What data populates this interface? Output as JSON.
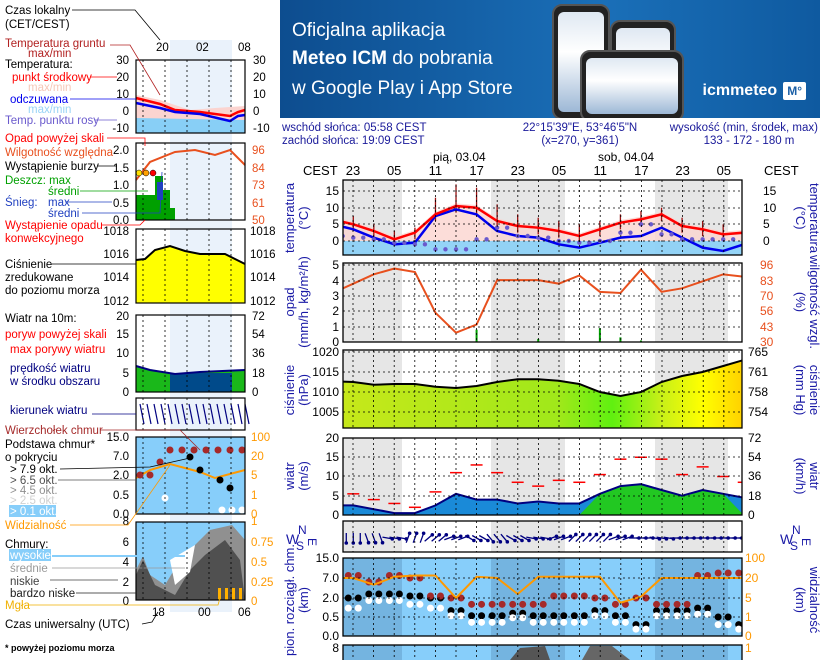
{
  "banner": {
    "line1": "Oficjalna aplikacja",
    "line2_bold": "Meteo ICM",
    "line2_rest": " do pobrania",
    "line3": "w Google Play i App Store",
    "logo_text": "icmmeteo",
    "logo_badge": "M°"
  },
  "info": {
    "sunrise": "wschód słońca: 05:58 CEST",
    "sunset": "zachód słońca: 19:09 CEST",
    "coords": "22°15'39\"E, 53°46'5\"N",
    "grid": "(x=270,  y=361)",
    "elev_label": "wysokość (min, środek, max)",
    "elev_value": "133 - 172 - 180 m"
  },
  "legend": {
    "local_time": "Czas lokalny",
    "local_time_zone": "(CET/CEST)",
    "local_ticks": [
      "20",
      "02",
      "08"
    ],
    "ground_temp": "Temperatura gruntu",
    "ground_temp_mm": "max/min",
    "temperature": "Temperatura:",
    "mid_point": "punkt środkowy",
    "mid_mm": "max/min",
    "feels": "odczuwana",
    "feels_mm": "max/min",
    "dew_point": "Temp. punktu rosy",
    "temp_ticks": [
      "30",
      "20",
      "10",
      "0",
      "-10"
    ],
    "precip_over": "Opad powyżej skali",
    "humidity": "Wilgotność względna",
    "storm": "Wystąpienie burzy",
    "rain": "Deszcz: max",
    "rain_avg": "średni",
    "snow": "Śnieg:",
    "snow_max": "max",
    "snow_avg": "średni",
    "convective": "Wystąpienie opadu",
    "convective2": "konwekcyjnego",
    "precip_ticks": [
      "2.0",
      "1.5",
      "1.0",
      "0.5",
      "0.0"
    ],
    "humidity_ticks": [
      "96",
      "84",
      "73",
      "61",
      "50"
    ],
    "pressure1": "Ciśnienie",
    "pressure2": "zredukowane",
    "pressure3": "do poziomu morza",
    "pressure_ticks": [
      "1018",
      "1016",
      "1014",
      "1012"
    ],
    "wind": "Wiatr na 10m:",
    "gust_over": "poryw powyżej skali",
    "gust_max": "max porywy wiatru",
    "wind_speed": "prędkość wiatru",
    "wind_speed2": "w środku obszaru",
    "wind_ticks": [
      "20",
      "15",
      "10",
      "5",
      "0"
    ],
    "wind_kmh_ticks": [
      "72",
      "54",
      "36",
      "18",
      "0"
    ],
    "wind_dir": "kierunek wiatru",
    "cloud_top": "Wierzchołek chmur",
    "cloud_base": "Podstawa chmur*",
    "cloud_base2": "o pokryciu",
    "okt": [
      "> 7.9 okt.",
      "> 6.5 okt.",
      "> 4.5 okt.",
      "> 2.5 okt.",
      "> 0.1 okt."
    ],
    "cloud_ticks": [
      "15.0",
      "7.0",
      "2.0",
      "0.5",
      "0.0"
    ],
    "vis_ticks": [
      "100",
      "20",
      "5",
      "1",
      "0"
    ],
    "visibility": "Widzialność",
    "clouds": "Chmury:",
    "high": "wysokie",
    "medium": "średnie",
    "low": "niskie",
    "very_low": "bardzo niske",
    "fog": "Mgła",
    "cover_ticks": [
      "8",
      "6",
      "4",
      "2",
      "0"
    ],
    "cover_frac_ticks": [
      "1",
      "0.75",
      "0.5",
      "0.25",
      "0"
    ],
    "utc_ticks": [
      "18",
      "00",
      "06"
    ],
    "utc": "Czas uniwersalny (UTC)",
    "footnote": "* powyżej poziomu morza"
  },
  "main": {
    "tz": "CEST",
    "days": [
      "pią, 03.04",
      "sob, 04.04"
    ],
    "hour_ticks": [
      "23",
      "05",
      "11",
      "17",
      "23",
      "05",
      "11",
      "17",
      "23",
      "05"
    ],
    "temp_label": "temperatura",
    "temp_unit": "(°C)",
    "temp_ticks": [
      "15",
      "10",
      "5",
      "0"
    ],
    "precip_label": "opad",
    "precip_unit": "(mm/h, kg/m²/h)",
    "precip_ticks": [
      "5",
      "4",
      "3",
      "2",
      "1",
      "0"
    ],
    "rh_label": "wilgotność wzgl.",
    "rh_unit": "(%)",
    "rh_ticks": [
      "96",
      "83",
      "70",
      "56",
      "43",
      "30"
    ],
    "pres_label": "ciśnienie",
    "pres_unit": "(hPa)",
    "pres_ticks": [
      "1020",
      "1015",
      "1010",
      "1005"
    ],
    "pres_mm_label": "ciśnienie",
    "pres_mm_unit": "(mm Hg)",
    "pres_mm_ticks": [
      "765",
      "761",
      "758",
      "754"
    ],
    "wind_label": "wiatr",
    "wind_unit": "(m/s)",
    "wind_ticks": [
      "20",
      "15",
      "10",
      "5",
      "0"
    ],
    "wind_kmh_unit": "(km/h)",
    "wind_kmh_ticks": [
      "72",
      "54",
      "36",
      "18",
      "0"
    ],
    "compass": {
      "n": "N",
      "e": "E",
      "s": "S",
      "w": "W"
    },
    "cloud_label": "pion. rozciągł. chm.",
    "cloud_unit": "(km)",
    "cloud_ticks": [
      "15.0",
      "7.0",
      "2.0",
      "0.5",
      "0.0"
    ],
    "vis_label": "widzialność",
    "vis_unit": "(km)",
    "vis_ticks": [
      "100",
      "20",
      "5",
      "1",
      "0"
    ],
    "cover_top_left": "8",
    "cover_top_right": "1"
  },
  "colors": {
    "temp": "#ff0000",
    "feels": "#0000ee",
    "dew": "#6a5acd",
    "ground": "#9b1010",
    "humidity": "#e8501e",
    "rain": "#00a000",
    "wind": "#000080",
    "gust": "#ff0000",
    "visibility": "#ff9900",
    "cloud_top": "#a52a2a",
    "night": "#e6e6e6",
    "sky": "#87cefa"
  },
  "chart_data": {
    "type": "line",
    "time_step_hours": 3,
    "times_cest": [
      "20",
      "23",
      "02",
      "05",
      "08",
      "11",
      "14",
      "17",
      "20",
      "23",
      "02",
      "05",
      "08",
      "11",
      "14",
      "17",
      "20",
      "23",
      "02",
      "05",
      "08"
    ],
    "temperature_c": [
      6.5,
      5,
      3,
      0.5,
      2.5,
      8,
      10.5,
      10,
      6,
      4.5,
      4,
      3,
      1.5,
      3.5,
      5.5,
      6.5,
      8,
      4.5,
      3.5,
      2,
      2.5
    ],
    "feels_like_c": [
      5,
      3.5,
      1,
      -1,
      -0.5,
      7.5,
      9.5,
      8,
      3,
      1.5,
      1,
      -1,
      -2,
      -0.5,
      1,
      1.5,
      4,
      1,
      -2,
      -3,
      -1
    ],
    "dew_point_c": [
      1.5,
      1,
      0.5,
      -0.5,
      -1,
      -2.5,
      -2.5,
      0.5,
      4,
      1.5,
      1,
      0,
      -0.5,
      0,
      2.5,
      5,
      2,
      0.5,
      0.5,
      0.5,
      0.5
    ],
    "ground_temp_max_c": [
      8,
      7.5,
      5,
      3,
      4,
      13,
      17,
      16,
      11,
      8,
      7,
      6,
      5,
      6,
      8,
      9,
      10,
      7,
      6,
      5,
      5
    ],
    "relative_humidity_pct": [
      72,
      80,
      88,
      93,
      90,
      55,
      38,
      45,
      83,
      83,
      83,
      80,
      87,
      73,
      72,
      92,
      73,
      76,
      82,
      88,
      86
    ],
    "precip_mm_h": [
      0,
      0,
      0,
      0,
      0,
      0,
      0,
      0.8,
      0,
      0,
      0.2,
      0,
      0,
      0.9,
      0.3,
      0.1,
      0,
      0,
      0,
      0,
      0
    ],
    "pressure_hpa": [
      1012.7,
      1012.5,
      1011.8,
      1012,
      1012,
      1011.3,
      1011,
      1011.5,
      1012.5,
      1013.2,
      1013.2,
      1012.8,
      1012,
      1010,
      1009,
      1010,
      1012.5,
      1014,
      1015,
      1016.5,
      1018
    ],
    "wind_speed_ms": [
      2.5,
      2.5,
      1.5,
      0.5,
      0.5,
      2.5,
      5.5,
      4,
      4,
      3,
      3.5,
      3,
      3,
      5.5,
      7.5,
      8,
      6.5,
      5,
      6.5,
      5.5,
      4.5
    ],
    "wind_gust_ms": [
      5.5,
      5.5,
      4,
      3,
      2,
      6,
      11,
      13,
      11,
      8.5,
      7.5,
      9,
      8.5,
      10.5,
      14.5,
      15,
      14.5,
      10.5,
      12.5,
      10,
      8.5
    ],
    "wind_from_deg": [
      0,
      0,
      340,
      280,
      200,
      230,
      250,
      300,
      320,
      300,
      280,
      250,
      225,
      225,
      250,
      270,
      280,
      270,
      270,
      270,
      270
    ],
    "cloud_top_km": [
      8,
      8,
      6,
      8,
      7,
      2.5,
      2,
      1.5,
      1.5,
      1.5,
      1.5,
      2.5,
      2.5,
      2,
      1.5,
      2,
      1.5,
      1.5,
      8,
      9,
      9
    ],
    "cloud_base_km": [
      2,
      2,
      3,
      3,
      2.5,
      2,
      1,
      0.6,
      0.6,
      0.8,
      0.6,
      0.6,
      0.6,
      1,
      0.6,
      0.3,
      1,
      1,
      1.2,
      0.5,
      0.3
    ],
    "visibility_km": [
      20,
      20,
      15,
      25,
      30,
      30,
      5,
      25,
      20,
      8,
      25,
      25,
      25,
      25,
      4,
      6,
      20,
      20,
      20,
      20,
      20
    ]
  }
}
